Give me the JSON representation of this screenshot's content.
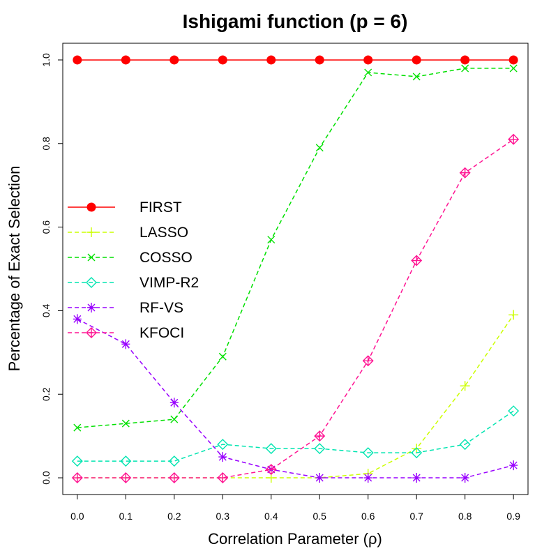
{
  "chart_data": {
    "type": "line",
    "title": "Ishigami function (p = 6)",
    "xlabel": "Correlation Parameter (ρ)",
    "ylabel": "Percentage of Exact Selection",
    "x": [
      0.0,
      0.1,
      0.2,
      0.3,
      0.4,
      0.5,
      0.6,
      0.7,
      0.8,
      0.9
    ],
    "x_tick_labels": [
      "0.0",
      "0.1",
      "0.2",
      "0.3",
      "0.4",
      "0.5",
      "0.6",
      "0.7",
      "0.8",
      "0.9"
    ],
    "y_tick_labels": [
      "0.0",
      "0.2",
      "0.4",
      "0.6",
      "0.8",
      "1.0"
    ],
    "xlim": [
      -0.03,
      0.93
    ],
    "ylim": [
      -0.04,
      1.04
    ],
    "grid": false,
    "legend_position": "middle-left",
    "series": [
      {
        "name": "FIRST",
        "color": "#ff0000",
        "marker": "filled-circle",
        "dash": "solid",
        "values": [
          1.0,
          1.0,
          1.0,
          1.0,
          1.0,
          1.0,
          1.0,
          1.0,
          1.0,
          1.0
        ]
      },
      {
        "name": "LASSO",
        "color": "#ccff00",
        "marker": "plus",
        "dash": "dashed",
        "values": [
          0.0,
          0.0,
          0.0,
          0.0,
          0.0,
          0.0,
          0.01,
          0.07,
          0.22,
          0.39
        ]
      },
      {
        "name": "COSSO",
        "color": "#00e000",
        "marker": "cross",
        "dash": "dashed",
        "values": [
          0.12,
          0.13,
          0.14,
          0.29,
          0.57,
          0.79,
          0.97,
          0.96,
          0.98,
          0.98
        ]
      },
      {
        "name": "VIMP-R2",
        "color": "#00e5b0",
        "marker": "diamond",
        "dash": "dashed",
        "values": [
          0.04,
          0.04,
          0.04,
          0.08,
          0.07,
          0.07,
          0.06,
          0.06,
          0.08,
          0.16
        ]
      },
      {
        "name": "RF-VS",
        "color": "#9900ff",
        "marker": "asterisk",
        "dash": "dashed",
        "values": [
          0.38,
          0.32,
          0.18,
          0.05,
          0.02,
          0.0,
          0.0,
          0.0,
          0.0,
          0.03
        ]
      },
      {
        "name": "KFOCI",
        "color": "#ff1493",
        "marker": "diamond-plus",
        "dash": "dashed",
        "values": [
          0.0,
          0.0,
          0.0,
          0.0,
          0.02,
          0.1,
          0.28,
          0.52,
          0.73,
          0.81
        ]
      }
    ]
  }
}
